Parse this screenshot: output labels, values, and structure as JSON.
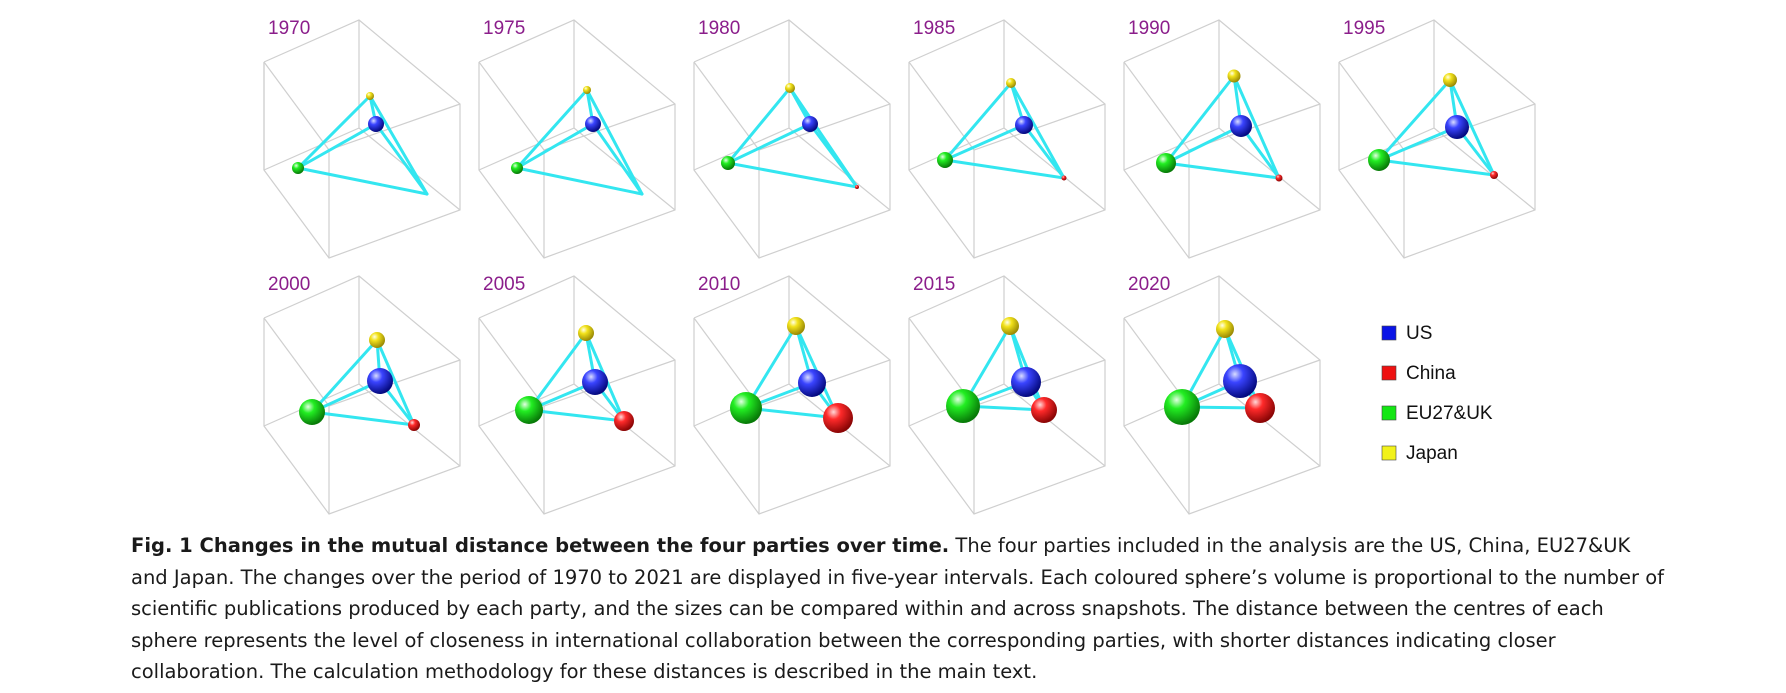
{
  "figure": {
    "panels": [
      {
        "year": "1970"
      },
      {
        "year": "1975"
      },
      {
        "year": "1980"
      },
      {
        "year": "1985"
      },
      {
        "year": "1990"
      },
      {
        "year": "1995"
      },
      {
        "year": "2000"
      },
      {
        "year": "2005"
      },
      {
        "year": "2010"
      },
      {
        "year": "2015"
      },
      {
        "year": "2020"
      }
    ],
    "legend": [
      {
        "label": "US",
        "color": "#0a14e6"
      },
      {
        "label": "China",
        "color": "#ee1111"
      },
      {
        "label": "EU27&UK",
        "color": "#14e614"
      },
      {
        "label": "Japan",
        "color": "#f2f21a"
      }
    ],
    "colors": {
      "link": "#33e6f0",
      "year_label": "#8b1e8b",
      "box": "#cfcfcf"
    }
  },
  "caption": {
    "title": "Fig. 1 Changes in the mutual distance between the four parties over time.",
    "text": " The four parties included in the analysis are the US, China, EU27&UK and Japan. The changes over the period of 1970 to 2021 are displayed in five-year intervals. Each coloured sphere’s volume is proportional to the number of scientific publications produced by each party, and the sizes can be compared within and across snapshots. The distance between the centres of each sphere represents the level of closeness in international collaboration between the corresponding parties, with shorter distances indicating closer collaboration. The calculation methodology for these distances is described in the main text."
  }
}
